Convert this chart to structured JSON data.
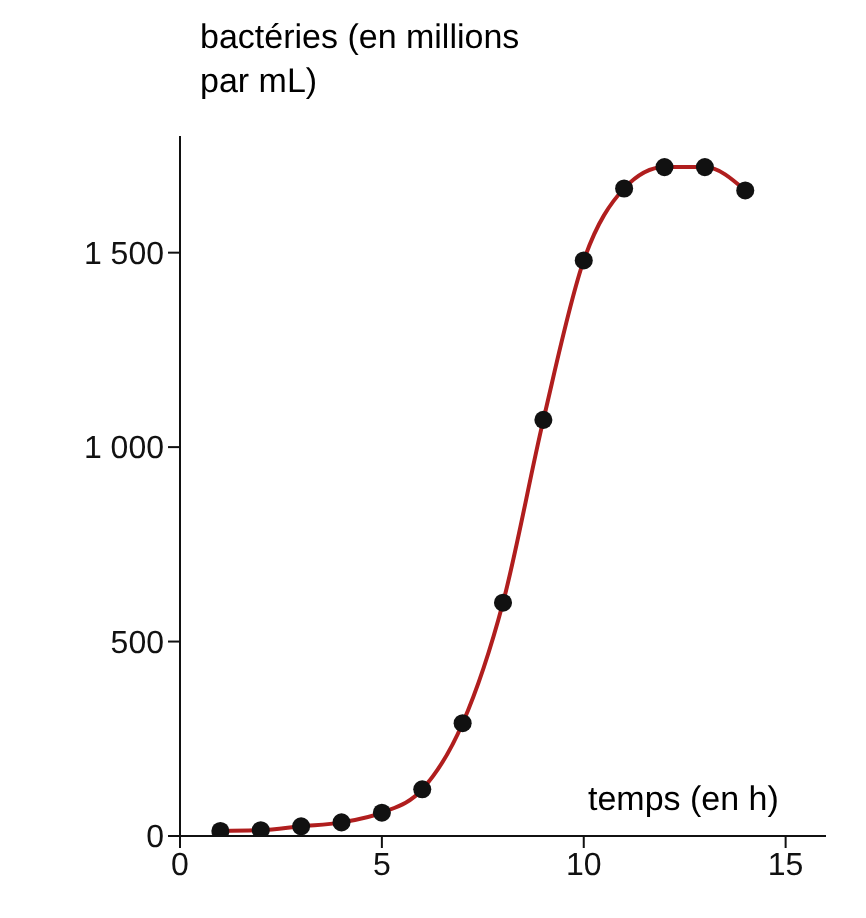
{
  "chart_data": {
    "type": "scatter",
    "xlabel": "temps (en h)",
    "ylabel": "bactéries (en millions par mL)",
    "xlim": [
      0,
      16
    ],
    "xticks": [
      0,
      5,
      10,
      15
    ],
    "ylim": [
      0,
      1800
    ],
    "yticks": [
      0,
      500,
      {
        "value": 1000,
        "label": "1 000"
      },
      {
        "value": 1500,
        "label": "1 500"
      }
    ],
    "grid": false,
    "x": [
      1,
      2,
      3,
      4,
      5,
      6,
      7,
      8,
      9,
      10,
      11,
      12,
      13,
      14
    ],
    "series": [
      {
        "type": "line",
        "color": "#b01e1e",
        "marker": "none",
        "line_style": "solid",
        "values": [
          13,
          15,
          25,
          35,
          60,
          120,
          290,
          600,
          1070,
          1480,
          1665,
          1720,
          1720,
          1660
        ]
      },
      {
        "color": "#111111",
        "marker": "circle",
        "values": [
          13,
          15,
          25,
          35,
          60,
          120,
          290,
          600,
          1070,
          1480,
          1665,
          1720,
          1720,
          1660
        ]
      }
    ]
  }
}
